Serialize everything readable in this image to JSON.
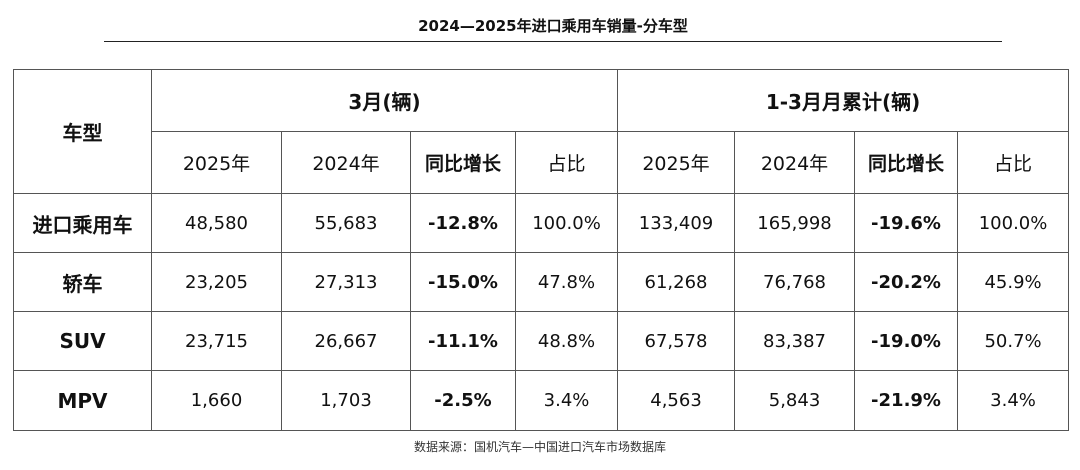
{
  "title": "2024—2025年进口乘用车销量-分车型",
  "table": {
    "corner_label": "车型",
    "group_march": "3月(辆)",
    "group_ytd": "1-3月月累计(辆)",
    "columns": [
      "2025年",
      "2024年",
      "同比增长",
      "占比",
      "2025年",
      "2024年",
      "同比增长",
      "占比"
    ],
    "rows": [
      {
        "label": "进口乘用车",
        "values": [
          "48,580",
          "55,683",
          "-12.8%",
          "100.0%",
          "133,409",
          "165,998",
          "-19.6%",
          "100.0%"
        ]
      },
      {
        "label": "轿车",
        "values": [
          "23,205",
          "27,313",
          "-15.0%",
          "47.8%",
          "61,268",
          "76,768",
          "-20.2%",
          "45.9%"
        ]
      },
      {
        "label": "SUV",
        "values": [
          "23,715",
          "26,667",
          "-11.1%",
          "48.8%",
          "67,578",
          "83,387",
          "-19.0%",
          "50.7%"
        ]
      },
      {
        "label": "MPV",
        "values": [
          "1,660",
          "1,703",
          "-2.5%",
          "3.4%",
          "4,563",
          "5,843",
          "-21.9%",
          "3.4%"
        ]
      }
    ]
  },
  "source": "数据来源：国机汽车—中国进口汽车市场数据库"
}
